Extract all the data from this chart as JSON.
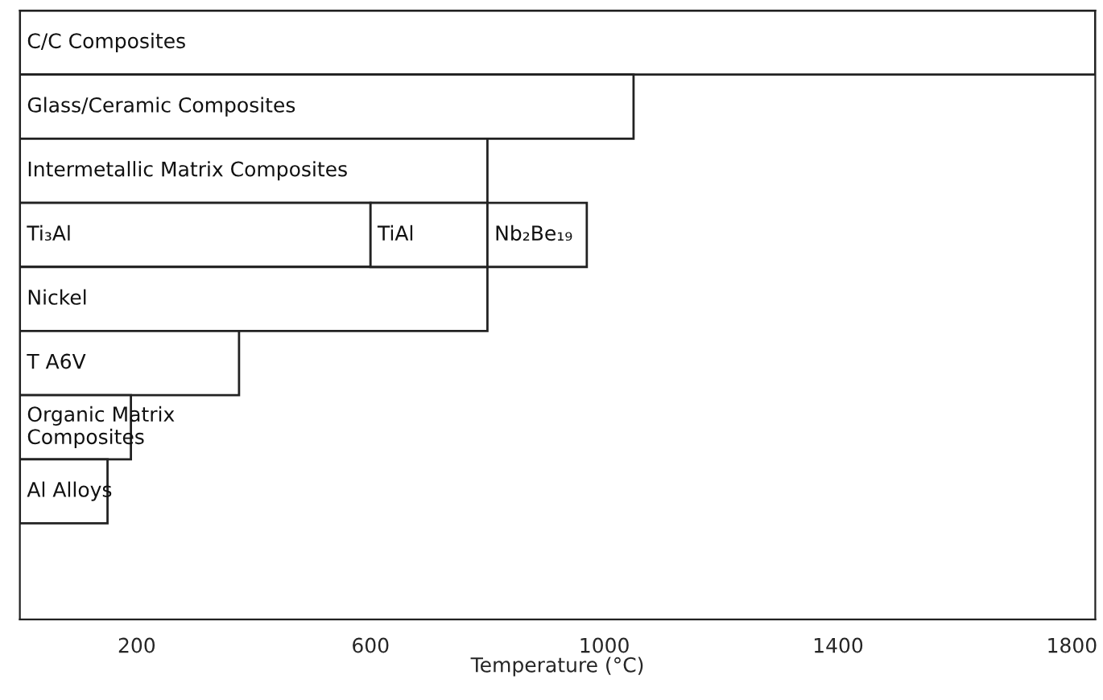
{
  "chart_data": {
    "type": "bar",
    "orientation": "horizontal",
    "xlabel": "Temperature (°C)",
    "categories": [
      "C/C Composites",
      "Glass/Ceramic Composites",
      "Intermetallic Matrix Composites",
      "Ti₃Al",
      "Nickel",
      "T A6V",
      "Organic Matrix\nComposites",
      "Al Alloys"
    ],
    "series": [
      {
        "color": "#ffffff",
        "values": [
          1840,
          1050,
          800,
          600,
          800,
          375,
          190,
          150
        ],
        "base": [
          0,
          0,
          0,
          0,
          0,
          0,
          0,
          0
        ]
      },
      {
        "name": "TiAl",
        "color": "#ffffff",
        "values": [
          null,
          null,
          null,
          200,
          null,
          null,
          null,
          null
        ],
        "base": [
          null,
          null,
          null,
          600,
          null,
          null,
          null,
          null
        ]
      },
      {
        "name": "Nb₂Be₁₉",
        "color": "#ffffff",
        "values": [
          null,
          null,
          null,
          170,
          null,
          null,
          null,
          null
        ],
        "base": [
          null,
          null,
          null,
          800,
          null,
          null,
          null,
          null
        ]
      }
    ],
    "xlim": [
      0,
      1840
    ],
    "xticks": [
      200,
      600,
      1000,
      1400,
      1800
    ],
    "tick_labels": "x",
    "grid": false,
    "legend": false
  }
}
